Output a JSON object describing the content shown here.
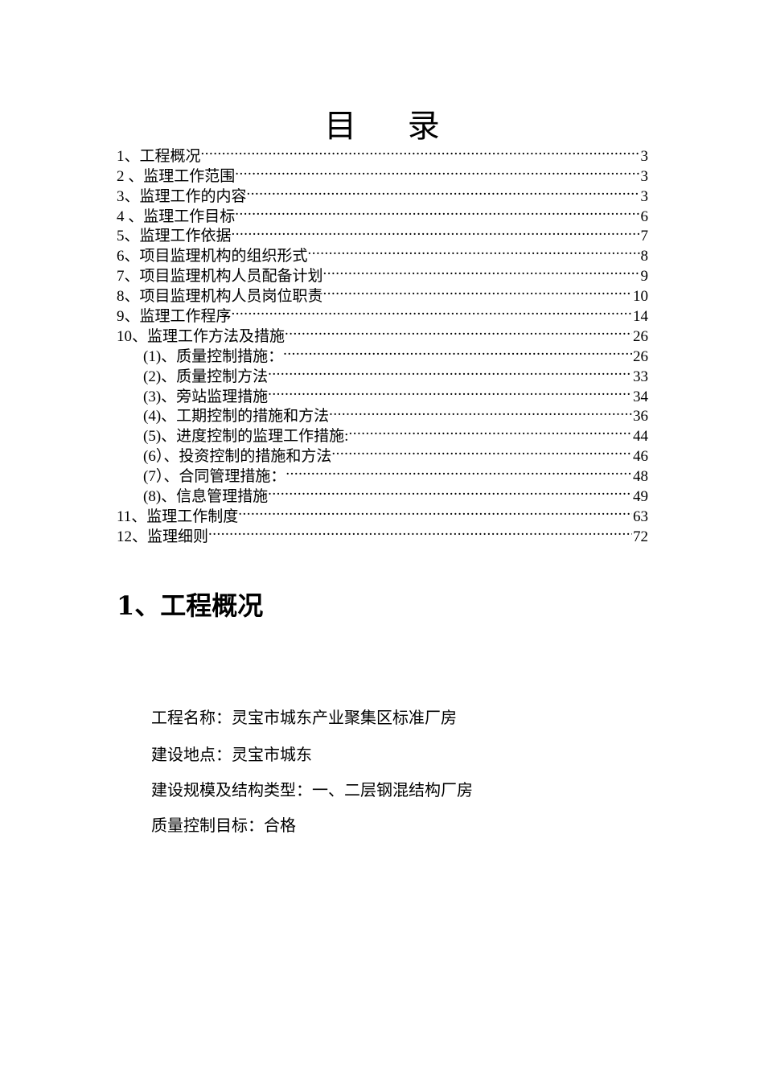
{
  "toc_title": "目     录",
  "toc": [
    {
      "label": "1、工程概况",
      "page": "3",
      "level": 1
    },
    {
      "label": "2 、监理工作范围",
      "page": "3",
      "level": 1
    },
    {
      "label": "3、监理工作的内容",
      "page": "3",
      "level": 1
    },
    {
      "label": "4 、监理工作目标",
      "page": "6",
      "level": 1
    },
    {
      "label": "5、监理工作依据",
      "page": "7",
      "level": 1
    },
    {
      "label": "6、项目监理机构的组织形式",
      "page": "8",
      "level": 1
    },
    {
      "label": "7、项目监理机构人员配备计划",
      "page": "9",
      "level": 1
    },
    {
      "label": "8、项目监理机构人员岗位职责",
      "page": "10",
      "level": 1
    },
    {
      "label": "9、监理工作程序",
      "page": "14",
      "level": 1
    },
    {
      "label": "10、监理工作方法及措施",
      "page": "26",
      "level": 1
    },
    {
      "label": "(1)、质量控制措施：",
      "page": "26",
      "level": 2
    },
    {
      "label": "(2)、质量控制方法",
      "page": "33",
      "level": 2
    },
    {
      "label": "(3)、旁站监理措施",
      "page": "34",
      "level": 2
    },
    {
      "label": "(4)、工期控制的措施和方法",
      "page": "36",
      "level": 2
    },
    {
      "label": "(5)、进度控制的监理工作措施:",
      "page": "44",
      "level": 2
    },
    {
      "label": "(6）、投资控制的措施和方法",
      "page": "46",
      "level": 2
    },
    {
      "label": "(7）、合同管理措施：",
      "page": "48",
      "level": 2
    },
    {
      "label": "(8)、信息管理措施",
      "page": "49",
      "level": 2
    },
    {
      "label": "11、监理工作制度",
      "page": "63",
      "level": 1
    },
    {
      "label": "12、监理细则",
      "page": "72",
      "level": 1
    }
  ],
  "section_heading": "1、工程概况",
  "body_lines": [
    "工程名称：灵宝市城东产业聚集区标准厂房",
    "建设地点：灵宝市城东",
    "建设规模及结构类型：一、二层钢混结构厂房",
    "质量控制目标：合格"
  ]
}
